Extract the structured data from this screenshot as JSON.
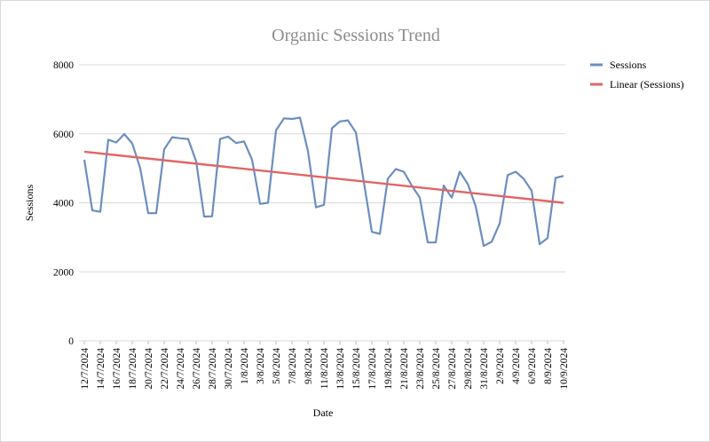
{
  "chart_data": {
    "type": "line",
    "title": "Organic Sessions Trend",
    "xlabel": "Date",
    "ylabel": "Sessions",
    "ylim": [
      0,
      8000
    ],
    "yticks": [
      0,
      2000,
      4000,
      6000,
      8000
    ],
    "grid": true,
    "legend_position": "right",
    "xtick_labels": [
      "12/7/2024",
      "14/7/2024",
      "16/7/2024",
      "18/7/2024",
      "20/7/2024",
      "22/7/2024",
      "24/7/2024",
      "26/7/2024",
      "28/7/2024",
      "30/7/2024",
      "1/8/2024",
      "3/8/2024",
      "5/8/2024",
      "7/8/2024",
      "9/8/2024",
      "11/8/2024",
      "13/8/2024",
      "15/8/2024",
      "17/8/2024",
      "19/8/2024",
      "21/8/2024",
      "23/8/2024",
      "25/8/2024",
      "27/8/2024",
      "29/8/2024",
      "31/8/2024",
      "2/9/2024",
      "4/9/2024",
      "6/9/2024",
      "8/9/2024",
      "10/9/2024"
    ],
    "series": [
      {
        "name": "Sessions",
        "color": "#6c8ebf",
        "values": [
          5250,
          3780,
          3740,
          5830,
          5750,
          5990,
          5720,
          5000,
          3700,
          3700,
          5550,
          5900,
          5870,
          5850,
          5200,
          3600,
          3610,
          5850,
          5920,
          5730,
          5780,
          5250,
          3970,
          4000,
          6100,
          6450,
          6430,
          6470,
          5500,
          3870,
          3940,
          6160,
          6360,
          6390,
          6040,
          4600,
          3160,
          3100,
          4700,
          4980,
          4900,
          4500,
          4150,
          2850,
          2850,
          4500,
          4150,
          4900,
          4550,
          3900,
          2750,
          2870,
          3400,
          4800,
          4900,
          4700,
          4350,
          2800,
          2980,
          4720,
          4780
        ]
      },
      {
        "name": "Linear (Sessions)",
        "color": "#e06666",
        "trend": [
          5480,
          4000
        ]
      }
    ]
  }
}
